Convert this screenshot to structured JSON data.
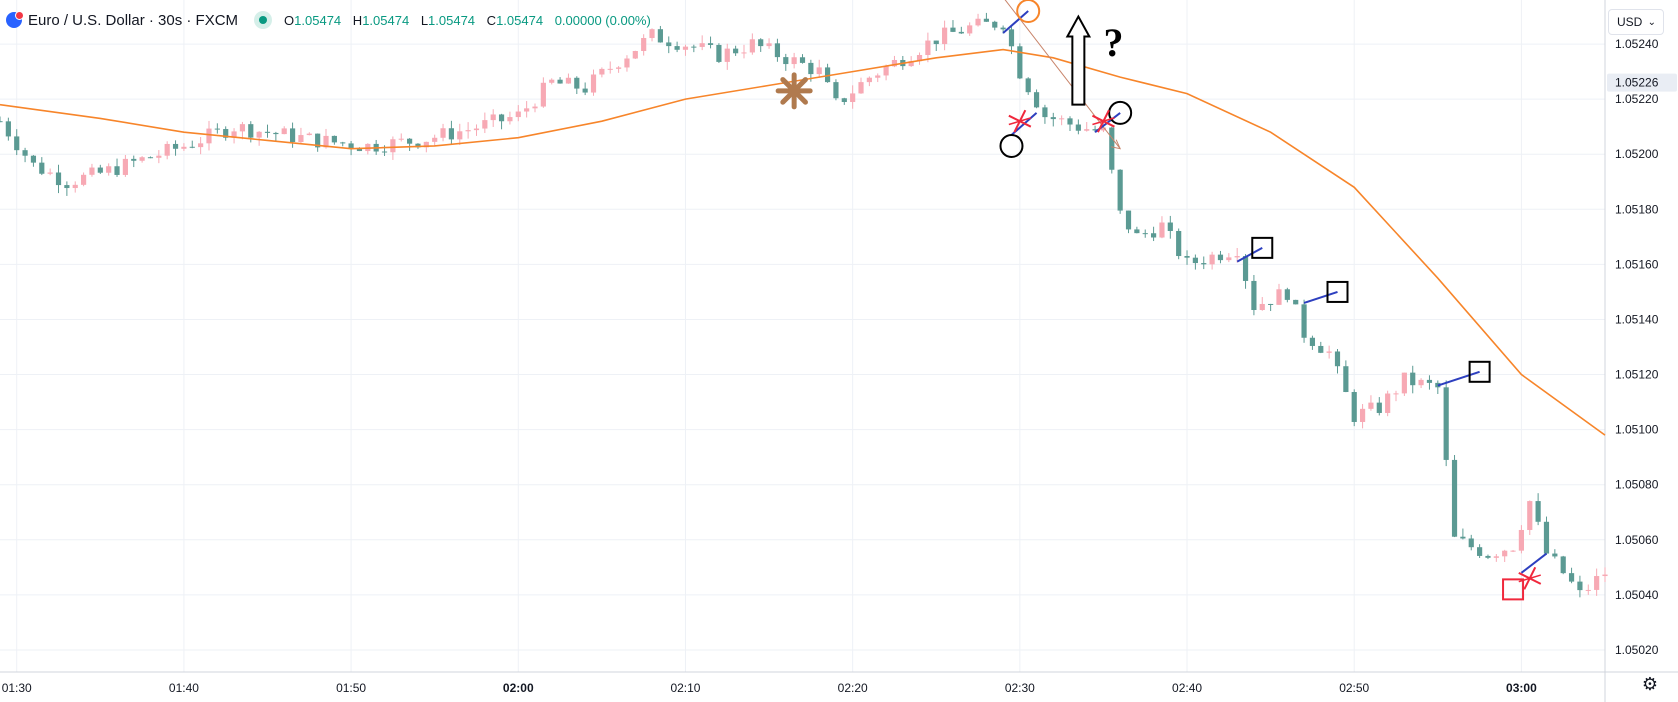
{
  "header": {
    "symbol": "Euro / U.S. Dollar · 30s · FXCM",
    "o_label": "O",
    "o_value": "1.05474",
    "h_label": "H",
    "h_value": "1.05474",
    "l_label": "L",
    "l_value": "1.05474",
    "c_label": "C",
    "c_value": "1.05474",
    "change": "0.00000 (0.00%)"
  },
  "currency_selector": {
    "label": "USD"
  },
  "icons": {
    "settings": "gear-icon",
    "logo": "fxcm-logo-icon",
    "status": "market-open-dot-icon"
  },
  "colors": {
    "up": "#f7a9b4",
    "down": "#5b9a93",
    "ma": "#f7852a",
    "annotation_line": "#2d3fbf",
    "cross": "#f0283c",
    "current_price_bg": "#e9edf4"
  },
  "chart_data": {
    "type": "candlestick",
    "x_axis": {
      "ticks": [
        "01:30",
        "01:40",
        "01:50",
        "02:00",
        "02:10",
        "02:20",
        "02:30",
        "02:40",
        "02:50",
        "03:00"
      ],
      "bold_ticks": [
        "02:00",
        "03:00"
      ],
      "range": [
        "01:29:00",
        "03:05:00"
      ],
      "interval": "30s"
    },
    "y_axis": {
      "ticks": [
        "1.05240",
        "1.05220",
        "1.05200",
        "1.05180",
        "1.05160",
        "1.05140",
        "1.05120",
        "1.05100",
        "1.05080",
        "1.05060",
        "1.05040",
        "1.05020"
      ],
      "range": [
        1.05012,
        1.05256
      ],
      "current_price_label": "1.05226",
      "current_price": 1.05226,
      "grid": true
    },
    "close_path": [
      [
        "01:29:00",
        1.05212
      ],
      [
        "01:31:00",
        1.05196
      ],
      [
        "01:33:00",
        1.0519
      ],
      [
        "01:35:00",
        1.05193
      ],
      [
        "01:37:00",
        1.05197
      ],
      [
        "01:40:00",
        1.05203
      ],
      [
        "01:43:00",
        1.0521
      ],
      [
        "01:46:00",
        1.05207
      ],
      [
        "01:48:00",
        1.05205
      ],
      [
        "01:51:00",
        1.05203
      ],
      [
        "01:54:00",
        1.05205
      ],
      [
        "01:57:00",
        1.05209
      ],
      [
        "02:00:00",
        1.05214
      ],
      [
        "02:02:00",
        1.05226
      ],
      [
        "02:04:00",
        1.05224
      ],
      [
        "02:06:00",
        1.05234
      ],
      [
        "02:08:00",
        1.05243
      ],
      [
        "02:10:00",
        1.0524
      ],
      [
        "02:12:00",
        1.05236
      ],
      [
        "02:14:00",
        1.0524
      ],
      [
        "02:16:00",
        1.05235
      ],
      [
        "02:18:00",
        1.0523
      ],
      [
        "02:19:00",
        1.05218
      ],
      [
        "02:21:00",
        1.05228
      ],
      [
        "02:23:00",
        1.05235
      ],
      [
        "02:25:00",
        1.05242
      ],
      [
        "02:27:00",
        1.05246
      ],
      [
        "02:29:00",
        1.05248
      ],
      [
        "02:30:00",
        1.0523
      ],
      [
        "02:31:30",
        1.05214
      ],
      [
        "02:33:30",
        1.0521
      ],
      [
        "02:35:00",
        1.05208
      ],
      [
        "02:36:00",
        1.05178
      ],
      [
        "02:37:00",
        1.0517
      ],
      [
        "02:38:30",
        1.05174
      ],
      [
        "02:40:00",
        1.0516
      ],
      [
        "02:42:00",
        1.05164
      ],
      [
        "02:43:00",
        1.05166
      ],
      [
        "02:44:00",
        1.05145
      ],
      [
        "02:46:00",
        1.0515
      ],
      [
        "02:47:00",
        1.05135
      ],
      [
        "02:48:30",
        1.05128
      ],
      [
        "02:50:00",
        1.05105
      ],
      [
        "02:51:30",
        1.05108
      ],
      [
        "02:53:00",
        1.05118
      ],
      [
        "02:55:00",
        1.05115
      ],
      [
        "02:56:00",
        1.0506
      ],
      [
        "02:58:00",
        1.05055
      ],
      [
        "02:59:30",
        1.05058
      ],
      [
        "03:00:30",
        1.05074
      ],
      [
        "03:01:30",
        1.05055
      ],
      [
        "03:02:30",
        1.05048
      ],
      [
        "03:03:30",
        1.0504
      ],
      [
        "03:05:00",
        1.05048
      ]
    ],
    "moving_average": [
      [
        "01:29:00",
        1.05218
      ],
      [
        "01:35:00",
        1.05213
      ],
      [
        "01:40:00",
        1.05208
      ],
      [
        "01:45:00",
        1.05205
      ],
      [
        "01:50:00",
        1.05202
      ],
      [
        "01:55:00",
        1.05203
      ],
      [
        "02:00:00",
        1.05206
      ],
      [
        "02:05:00",
        1.05212
      ],
      [
        "02:10:00",
        1.0522
      ],
      [
        "02:15:00",
        1.05225
      ],
      [
        "02:20:00",
        1.0523
      ],
      [
        "02:25:00",
        1.05235
      ],
      [
        "02:29:00",
        1.05238
      ],
      [
        "02:32:00",
        1.05235
      ],
      [
        "02:36:00",
        1.05228
      ],
      [
        "02:40:00",
        1.05222
      ],
      [
        "02:45:00",
        1.05208
      ],
      [
        "02:50:00",
        1.05188
      ],
      [
        "02:55:00",
        1.05155
      ],
      [
        "03:00:00",
        1.0512
      ],
      [
        "03:05:00",
        1.05098
      ]
    ],
    "drawings": {
      "trend_segments": [
        [
          [
            "02:29:00",
            1.05244
          ],
          [
            "02:30:30",
            1.05252
          ]
        ],
        [
          [
            "02:29:30",
            1.05207
          ],
          [
            "02:31:00",
            1.05215
          ]
        ],
        [
          [
            "02:34:30",
            1.05208
          ],
          [
            "02:36:00",
            1.05215
          ]
        ],
        [
          [
            "02:43:00",
            1.05161
          ],
          [
            "02:44:30",
            1.05166
          ]
        ],
        [
          [
            "02:47:00",
            1.05146
          ],
          [
            "02:49:00",
            1.0515
          ]
        ],
        [
          [
            "02:55:00",
            1.05116
          ],
          [
            "02:57:30",
            1.05121
          ]
        ],
        [
          [
            "03:00:00",
            1.05048
          ],
          [
            "03:01:30",
            1.05055
          ]
        ]
      ],
      "circles": [
        {
          "at": [
            "02:30:30",
            1.05252
          ],
          "color": "orange"
        },
        {
          "at": [
            "02:29:30",
            1.05203
          ],
          "color": "black"
        },
        {
          "at": [
            "02:36:00",
            1.05215
          ],
          "color": "black"
        }
      ],
      "squares": [
        {
          "at": [
            "02:44:30",
            1.05166
          ],
          "color": "black"
        },
        {
          "at": [
            "02:49:00",
            1.0515
          ],
          "color": "black"
        },
        {
          "at": [
            "02:57:30",
            1.05121
          ],
          "color": "black"
        },
        {
          "at": [
            "02:59:30",
            1.05042
          ],
          "color": "red"
        }
      ],
      "crosses": [
        [
          "02:30:00",
          1.05212
        ],
        [
          "02:35:00",
          1.05212
        ],
        [
          "03:00:30",
          1.05046
        ]
      ],
      "asterisk": [
        "02:16:30",
        1.05223
      ],
      "up_arrow": {
        "from": [
          "02:33:30",
          1.05218
        ],
        "to": [
          "02:33:30",
          1.0525
        ]
      },
      "question_mark": [
        "02:35:00",
        1.0524
      ],
      "thin_arrow": {
        "from": [
          "02:29:00",
          1.05257
        ],
        "to": [
          "02:36:00",
          1.05202
        ]
      }
    }
  }
}
